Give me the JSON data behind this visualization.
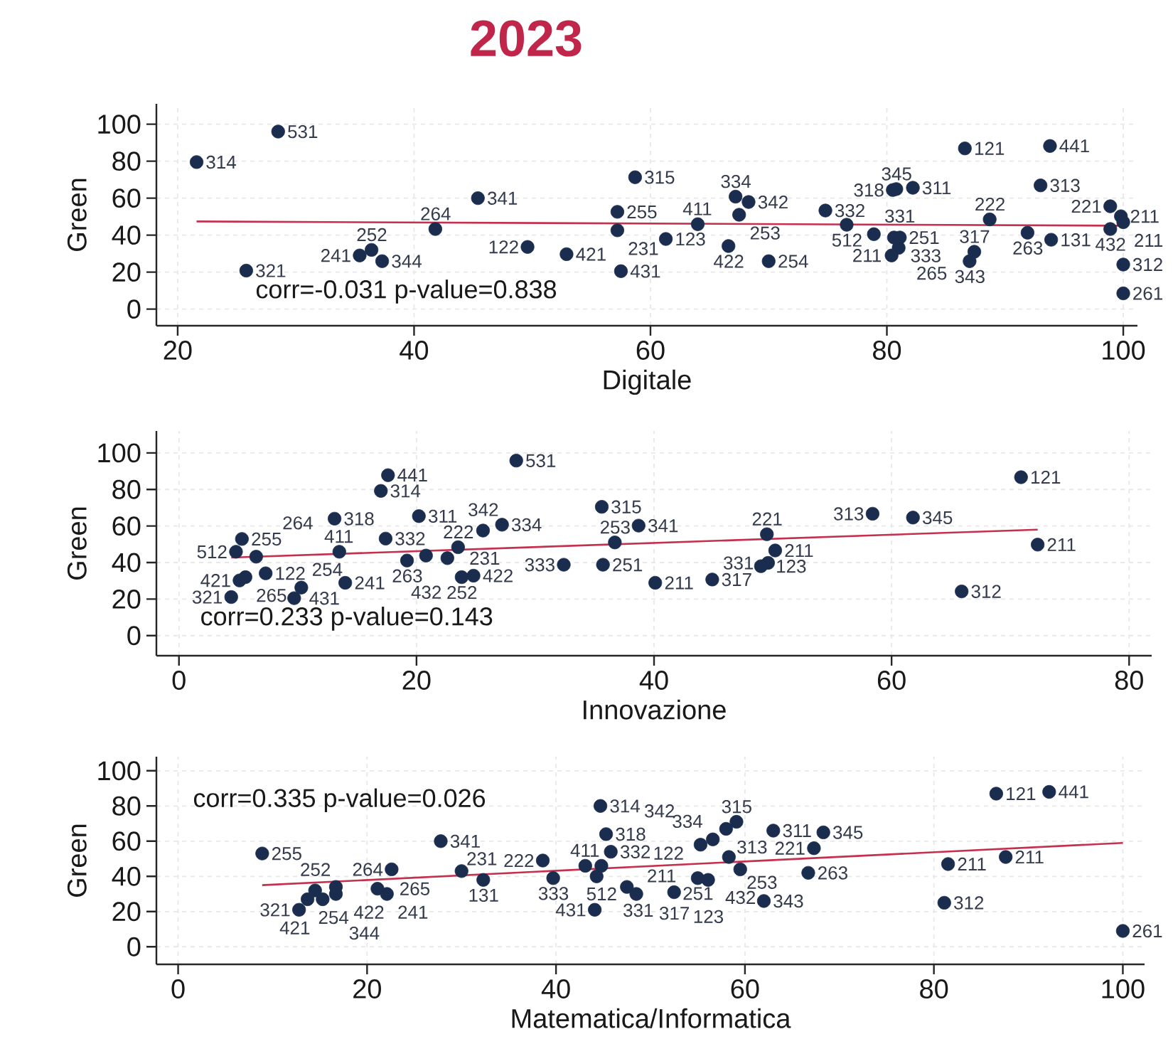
{
  "chart_data": [
    {
      "type": "scatter",
      "title": "2023",
      "xlabel": "Digitale",
      "ylabel": "Green",
      "xlim": [
        18.2,
        101.2
      ],
      "ylim": [
        -9,
        111
      ],
      "xticks": [
        20,
        40,
        60,
        80,
        100
      ],
      "yticks": [
        0,
        20,
        40,
        60,
        80,
        100
      ],
      "grid": true,
      "series": [
        {
          "marker": "circle",
          "color": "#1b2d4f",
          "x": [
            28.5,
            21.6,
            45.4,
            41.8,
            25.8,
            36.4,
            35.4,
            37.3,
            49.6,
            52.9,
            57.2,
            57.2,
            57.5,
            58.7,
            61.3,
            64.0,
            67.2,
            68.3,
            67.5,
            66.6,
            70.0,
            74.8,
            76.6,
            78.9,
            80.6,
            81.1,
            81.0,
            80.4,
            80.5,
            80.8,
            82.2,
            86.6,
            93.8,
            93.0,
            88.7,
            91.9,
            93.9,
            87.4,
            87.0,
            98.9,
            99.8,
            100,
            98.9,
            100,
            100
          ],
          "values": [
            96,
            79.5,
            60,
            43.3,
            20.8,
            32,
            29,
            25.9,
            33.6,
            29.7,
            52.6,
            42.6,
            20.5,
            71.3,
            37.9,
            45.9,
            60.8,
            57.9,
            51,
            34.1,
            25.9,
            53.3,
            45.6,
            40.5,
            38.7,
            38.7,
            33.1,
            29,
            64.4,
            64.9,
            65.6,
            86.9,
            88.2,
            66.9,
            48.5,
            41.3,
            37.5,
            31,
            25.9,
            55.6,
            50.2,
            47,
            43.3,
            24.1,
            8.5
          ]
        },
        {
          "type": "line",
          "marker": "none",
          "line_style": "solid",
          "color": "#c4304d",
          "x": [
            21.6,
            100
          ],
          "values": [
            47.4,
            45.1
          ]
        }
      ],
      "annotations": [
        "corr=-0.031 p-value=0.838",
        {
          "text": "531",
          "x": 28.5,
          "y": 96
        },
        {
          "text": "314",
          "x": 21.6,
          "y": 79.5
        },
        {
          "text": "341",
          "x": 45.4,
          "y": 60
        },
        {
          "text": "264",
          "x": 41.8,
          "y": 43.3
        },
        {
          "text": "321",
          "x": 25.8,
          "y": 20.8
        },
        {
          "text": "252",
          "x": 36.4,
          "y": 32
        },
        {
          "text": "241",
          "x": 35.4,
          "y": 29
        },
        {
          "text": "344",
          "x": 37.3,
          "y": 25.9
        },
        {
          "text": "122",
          "x": 49.6,
          "y": 33.6
        },
        {
          "text": "421",
          "x": 52.9,
          "y": 29.7
        },
        {
          "text": "255",
          "x": 57.2,
          "y": 52.6
        },
        {
          "text": "231",
          "x": 57.2,
          "y": 42.6
        },
        {
          "text": "431",
          "x": 57.5,
          "y": 20.5
        },
        {
          "text": "315",
          "x": 58.7,
          "y": 71.3
        },
        {
          "text": "123",
          "x": 61.3,
          "y": 37.9
        },
        {
          "text": "411",
          "x": 64.0,
          "y": 45.9
        },
        {
          "text": "334",
          "x": 67.2,
          "y": 60.8
        },
        {
          "text": "342",
          "x": 68.3,
          "y": 57.9
        },
        {
          "text": "253",
          "x": 67.5,
          "y": 51
        },
        {
          "text": "422",
          "x": 66.6,
          "y": 34.1
        },
        {
          "text": "254",
          "x": 70.0,
          "y": 25.9
        },
        {
          "text": "332",
          "x": 74.8,
          "y": 53.3
        },
        {
          "text": "512",
          "x": 76.6,
          "y": 45.6
        },
        {
          "text": "331",
          "x": 78.9,
          "y": 40.5
        },
        {
          "text": "251",
          "x": 80.6,
          "y": 38.7
        },
        {
          "text": "333",
          "x": 81.1,
          "y": 38.7
        },
        {
          "text": "265",
          "x": 81.0,
          "y": 33.1
        },
        {
          "text": "211",
          "x": 80.4,
          "y": 29
        },
        {
          "text": "318",
          "x": 80.5,
          "y": 64.4
        },
        {
          "text": "345",
          "x": 80.8,
          "y": 64.9
        },
        {
          "text": "311",
          "x": 82.2,
          "y": 65.6
        },
        {
          "text": "121",
          "x": 86.6,
          "y": 86.9
        },
        {
          "text": "441",
          "x": 93.8,
          "y": 88.2
        },
        {
          "text": "313",
          "x": 93.0,
          "y": 66.9
        },
        {
          "text": "222",
          "x": 88.7,
          "y": 48.5
        },
        {
          "text": "263",
          "x": 91.9,
          "y": 41.3
        },
        {
          "text": "131",
          "x": 93.9,
          "y": 37.5
        },
        {
          "text": "317",
          "x": 87.4,
          "y": 31
        },
        {
          "text": "343",
          "x": 87.0,
          "y": 25.9
        },
        {
          "text": "221",
          "x": 98.9,
          "y": 55.6
        },
        {
          "text": "211",
          "x": 99.8,
          "y": 50.2
        },
        {
          "text": "211",
          "x": 100,
          "y": 47
        },
        {
          "text": "432",
          "x": 98.9,
          "y": 43.3
        },
        {
          "text": "312",
          "x": 100,
          "y": 24.1
        },
        {
          "text": "261",
          "x": 100,
          "y": 8.5
        }
      ]
    },
    {
      "type": "scatter",
      "xlabel": "Innovazione",
      "ylabel": "Green",
      "xlim": [
        -1.9,
        81.9
      ],
      "ylim": [
        -11,
        112
      ],
      "xticks": [
        0,
        20,
        40,
        60,
        80
      ],
      "yticks": [
        0,
        20,
        40,
        60,
        80,
        100
      ],
      "grid": true,
      "series": [
        {
          "marker": "circle",
          "color": "#1b2d4f",
          "x": [
            28.4,
            17.6,
            17.0,
            13.1,
            20.2,
            17.4,
            25.6,
            27.2,
            5.3,
            4.8,
            6.5,
            13.5,
            23.5,
            19.2,
            20.8,
            22.6,
            23.8,
            24.8,
            32.4,
            35.7,
            36.7,
            35.6,
            38.7,
            40.1,
            5.1,
            5.6,
            7.3,
            4.4,
            9.7,
            10.3,
            14.0,
            44.9,
            49.5,
            50.2,
            49.0,
            49.6,
            58.4,
            61.8,
            70.9,
            72.3,
            65.9
          ],
          "values": [
            95.8,
            87.8,
            79.2,
            64,
            65.4,
            53.1,
            57.5,
            60.7,
            52.9,
            45.9,
            43.2,
            45.9,
            48.4,
            41.1,
            43.8,
            42.4,
            32,
            32.8,
            38.8,
            38.8,
            51,
            70.5,
            60.2,
            28.9,
            30.2,
            32,
            34.1,
            21.1,
            20.5,
            26.3,
            28.9,
            30.7,
            55.5,
            46.6,
            38,
            39.8,
            66.7,
            64.6,
            86.7,
            49.8,
            24.2
          ]
        },
        {
          "type": "line",
          "marker": "none",
          "line_style": "solid",
          "color": "#c4304d",
          "x": [
            4.4,
            72.3
          ],
          "values": [
            42.7,
            58
          ]
        }
      ],
      "annotations": [
        "corr=0.233 p-value=0.143",
        {
          "text": "531",
          "x": 28.4,
          "y": 95.8
        },
        {
          "text": "441",
          "x": 17.6,
          "y": 87.8
        },
        {
          "text": "314",
          "x": 17.0,
          "y": 79.2
        },
        {
          "text": "318",
          "x": 13.1,
          "y": 64
        },
        {
          "text": "311",
          "x": 20.2,
          "y": 65.4
        },
        {
          "text": "332",
          "x": 17.4,
          "y": 53.1
        },
        {
          "text": "342",
          "x": 25.6,
          "y": 57.5
        },
        {
          "text": "334",
          "x": 27.2,
          "y": 60.7
        },
        {
          "text": "255",
          "x": 5.3,
          "y": 52.9
        },
        {
          "text": "512",
          "x": 4.8,
          "y": 45.9
        },
        {
          "text": "264",
          "x": 6.5,
          "y": 43.2
        },
        {
          "text": "411",
          "x": 13.5,
          "y": 45.9
        },
        {
          "text": "222",
          "x": 23.5,
          "y": 48.4
        },
        {
          "text": "263",
          "x": 19.2,
          "y": 41.1
        },
        {
          "text": "432",
          "x": 20.8,
          "y": 43.8
        },
        {
          "text": "231",
          "x": 22.6,
          "y": 42.4
        },
        {
          "text": "252",
          "x": 23.8,
          "y": 32
        },
        {
          "text": "422",
          "x": 24.8,
          "y": 32.8
        },
        {
          "text": "333",
          "x": 32.4,
          "y": 38.8
        },
        {
          "text": "251",
          "x": 35.7,
          "y": 38.8
        },
        {
          "text": "253",
          "x": 36.7,
          "y": 51
        },
        {
          "text": "315",
          "x": 35.6,
          "y": 70.5
        },
        {
          "text": "341",
          "x": 38.7,
          "y": 60.2
        },
        {
          "text": "211",
          "x": 40.1,
          "y": 28.9
        },
        {
          "text": "421",
          "x": 5.1,
          "y": 30.2
        },
        {
          "text": "265",
          "x": 5.6,
          "y": 32
        },
        {
          "text": "122",
          "x": 7.3,
          "y": 34.1
        },
        {
          "text": "321",
          "x": 4.4,
          "y": 21.1
        },
        {
          "text": "431",
          "x": 9.7,
          "y": 20.5
        },
        {
          "text": "254",
          "x": 10.3,
          "y": 26.3
        },
        {
          "text": "241",
          "x": 14.0,
          "y": 28.9
        },
        {
          "text": "317",
          "x": 44.9,
          "y": 30.7
        },
        {
          "text": "221",
          "x": 49.5,
          "y": 55.5
        },
        {
          "text": "211",
          "x": 50.2,
          "y": 46.6
        },
        {
          "text": "123",
          "x": 49.0,
          "y": 38
        },
        {
          "text": "331",
          "x": 49.6,
          "y": 39.8
        },
        {
          "text": "313",
          "x": 58.4,
          "y": 66.7
        },
        {
          "text": "345",
          "x": 61.8,
          "y": 64.6
        },
        {
          "text": "121",
          "x": 70.9,
          "y": 86.7
        },
        {
          "text": "211",
          "x": 72.3,
          "y": 49.8
        },
        {
          "text": "312",
          "x": 65.9,
          "y": 24.2
        }
      ]
    },
    {
      "type": "scatter",
      "xlabel": "Matematica/Informatica",
      "ylabel": "Green",
      "xlim": [
        -2.3,
        102.3
      ],
      "ylim": [
        -10,
        108
      ],
      "xticks": [
        0,
        20,
        40,
        60,
        80,
        100
      ],
      "yticks": [
        0,
        20,
        40,
        60,
        80,
        100
      ],
      "grid": true,
      "series": [
        {
          "marker": "circle",
          "color": "#1b2d4f",
          "x": [
            44.7,
            45.3,
            45.8,
            8.9,
            27.8,
            22.6,
            30.0,
            32.3,
            38.6,
            39.7,
            43.1,
            44.8,
            44.3,
            44.1,
            47.5,
            48.5,
            12.8,
            13.7,
            14.5,
            15.3,
            16.7,
            16.7,
            21.1,
            22.1,
            59.1,
            58.0,
            56.6,
            55.3,
            63.0,
            68.3,
            58.3,
            67.3,
            59.5,
            66.7,
            55.0,
            56.1,
            52.5,
            62.0,
            81.5,
            87.6,
            86.6,
            92.2,
            81.1,
            100
          ],
          "values": [
            80,
            64,
            54,
            53,
            60,
            44,
            43,
            38,
            49,
            39,
            46,
            46,
            40,
            21,
            34,
            30,
            21,
            27,
            32,
            27,
            34,
            30,
            33,
            30,
            71,
            67,
            61,
            58,
            66,
            65,
            51,
            56,
            44,
            42,
            39,
            38,
            31,
            26,
            47,
            51,
            87,
            88,
            25,
            9
          ]
        },
        {
          "type": "line",
          "marker": "none",
          "line_style": "solid",
          "color": "#c4304d",
          "x": [
            8.9,
            100
          ],
          "values": [
            35,
            59
          ]
        }
      ],
      "annotations": [
        "corr=0.335 p-value=0.026",
        {
          "text": "314",
          "x": 44.7,
          "y": 80
        },
        {
          "text": "318",
          "x": 45.3,
          "y": 64
        },
        {
          "text": "332",
          "x": 45.8,
          "y": 54
        },
        {
          "text": "255",
          "x": 8.9,
          "y": 53
        },
        {
          "text": "341",
          "x": 27.8,
          "y": 60
        },
        {
          "text": "264",
          "x": 22.6,
          "y": 44
        },
        {
          "text": "231",
          "x": 30.0,
          "y": 43
        },
        {
          "text": "131",
          "x": 32.3,
          "y": 38
        },
        {
          "text": "222",
          "x": 38.6,
          "y": 49
        },
        {
          "text": "333",
          "x": 39.7,
          "y": 39
        },
        {
          "text": "411",
          "x": 43.1,
          "y": 46
        },
        {
          "text": "512",
          "x": 44.8,
          "y": 46
        },
        {
          "text": "331",
          "x": 44.3,
          "y": 40
        },
        {
          "text": "431",
          "x": 44.1,
          "y": 21
        },
        {
          "text": "122",
          "x": 47.5,
          "y": 34
        },
        {
          "text": "211",
          "x": 48.5,
          "y": 30
        },
        {
          "text": "321",
          "x": 12.8,
          "y": 21
        },
        {
          "text": "254",
          "x": 13.7,
          "y": 27
        },
        {
          "text": "252",
          "x": 14.5,
          "y": 32
        },
        {
          "text": "344",
          "x": 15.3,
          "y": 27
        },
        {
          "text": "422",
          "x": 16.7,
          "y": 34
        },
        {
          "text": "421",
          "x": 16.7,
          "y": 30
        },
        {
          "text": "265",
          "x": 21.1,
          "y": 33
        },
        {
          "text": "241",
          "x": 22.1,
          "y": 30
        },
        {
          "text": "315",
          "x": 59.1,
          "y": 71
        },
        {
          "text": "313",
          "x": 58.0,
          "y": 67
        },
        {
          "text": "334",
          "x": 56.6,
          "y": 61
        },
        {
          "text": "342",
          "x": 55.3,
          "y": 58
        },
        {
          "text": "311",
          "x": 63.0,
          "y": 66
        },
        {
          "text": "345",
          "x": 68.3,
          "y": 65
        },
        {
          "text": "253",
          "x": 58.3,
          "y": 51
        },
        {
          "text": "221",
          "x": 67.3,
          "y": 56
        },
        {
          "text": "432",
          "x": 59.5,
          "y": 44
        },
        {
          "text": "263",
          "x": 66.7,
          "y": 42
        },
        {
          "text": "251",
          "x": 55.0,
          "y": 39
        },
        {
          "text": "123",
          "x": 56.1,
          "y": 38
        },
        {
          "text": "317",
          "x": 52.5,
          "y": 31
        },
        {
          "text": "343",
          "x": 62.0,
          "y": 26
        },
        {
          "text": "211",
          "x": 81.5,
          "y": 47
        },
        {
          "text": "211",
          "x": 87.6,
          "y": 51
        },
        {
          "text": "121",
          "x": 86.6,
          "y": 87
        },
        {
          "text": "441",
          "x": 92.2,
          "y": 88
        },
        {
          "text": "312",
          "x": 81.1,
          "y": 25
        },
        {
          "text": "261",
          "x": 100,
          "y": 9
        }
      ]
    }
  ]
}
